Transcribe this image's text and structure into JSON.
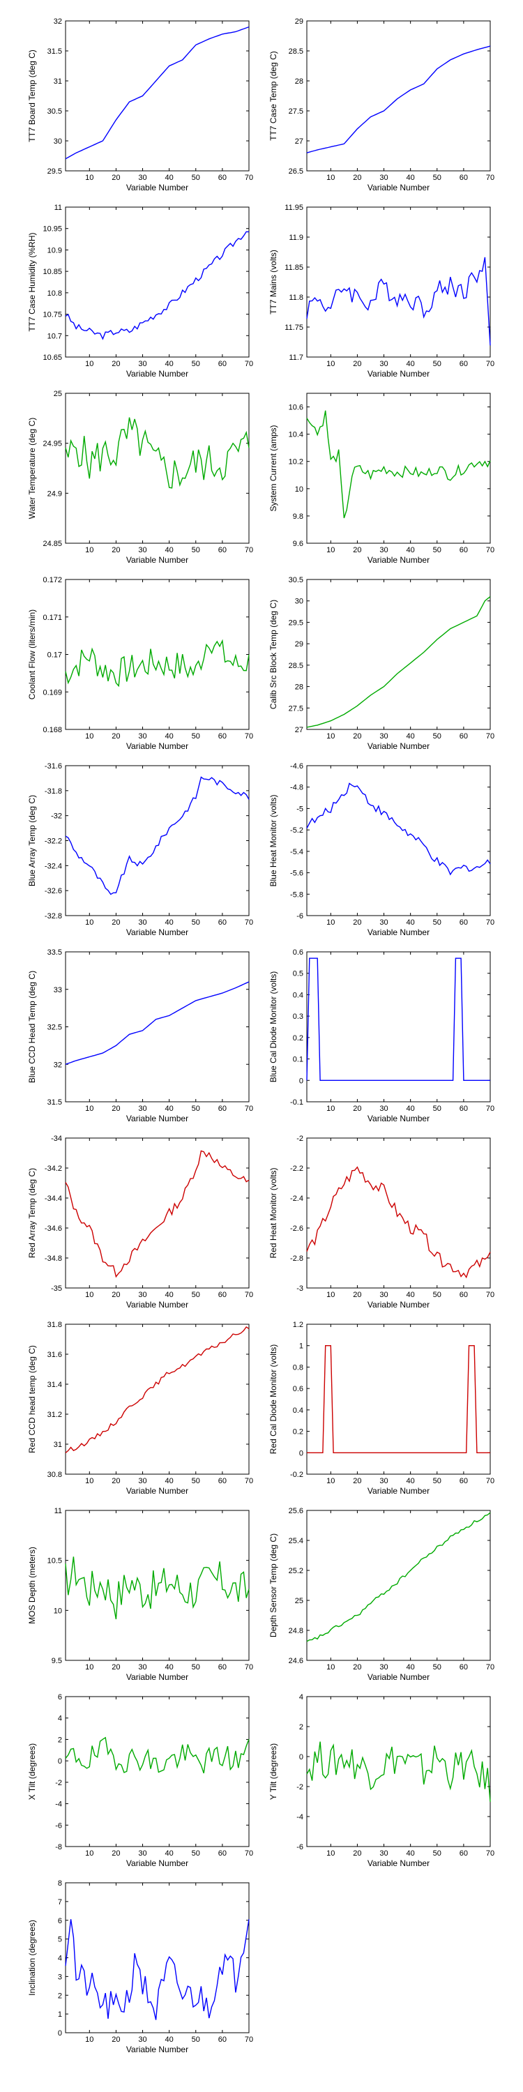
{
  "chart_data": [
    {
      "type": "line",
      "xlabel": "Variable Number",
      "ylabel": "TT7 Board Temp (deg C)",
      "xlim": [
        1,
        70
      ],
      "ylim": [
        29.5,
        32
      ],
      "xticks": [
        10,
        20,
        30,
        40,
        50,
        60,
        70
      ],
      "yticks": [
        "29.5",
        "30",
        "30.5",
        "31",
        "31.5",
        "32"
      ],
      "color": "#0000ff",
      "noise": 0.0,
      "x": [
        1,
        5,
        10,
        15,
        20,
        25,
        30,
        35,
        40,
        45,
        50,
        55,
        60,
        65,
        70
      ],
      "y": [
        29.7,
        29.8,
        29.9,
        30.0,
        30.35,
        30.65,
        30.75,
        31.0,
        31.25,
        31.35,
        31.6,
        31.7,
        31.78,
        31.82,
        31.9
      ]
    },
    {
      "type": "line",
      "xlabel": "Variable Number",
      "ylabel": "TT7 Case Temp (deg C)",
      "xlim": [
        1,
        70
      ],
      "ylim": [
        26.5,
        29
      ],
      "xticks": [
        10,
        20,
        30,
        40,
        50,
        60,
        70
      ],
      "yticks": [
        "26.5",
        "27",
        "27.5",
        "28",
        "28.5",
        "29"
      ],
      "color": "#0000ff",
      "noise": 0.0,
      "x": [
        1,
        5,
        10,
        15,
        20,
        25,
        30,
        35,
        40,
        45,
        50,
        55,
        60,
        65,
        70
      ],
      "y": [
        26.8,
        26.85,
        26.9,
        26.95,
        27.2,
        27.4,
        27.5,
        27.7,
        27.85,
        27.95,
        28.2,
        28.35,
        28.45,
        28.52,
        28.58
      ]
    },
    {
      "type": "line",
      "xlabel": "Variable Number",
      "ylabel": "TT7 Case Humidity (%RH)",
      "xlim": [
        1,
        70
      ],
      "ylim": [
        10.65,
        11
      ],
      "xticks": [
        10,
        20,
        30,
        40,
        50,
        60,
        70
      ],
      "yticks": [
        "10.65",
        "10.7",
        "10.75",
        "10.8",
        "10.85",
        "10.9",
        "10.95",
        "11"
      ],
      "color": "#0000ff",
      "noise": 0.008,
      "x": [
        1,
        5,
        10,
        15,
        20,
        25,
        30,
        35,
        40,
        45,
        50,
        55,
        60,
        65,
        70
      ],
      "y": [
        10.75,
        10.72,
        10.71,
        10.7,
        10.71,
        10.71,
        10.73,
        10.75,
        10.77,
        10.8,
        10.83,
        10.86,
        10.89,
        10.92,
        10.95
      ]
    },
    {
      "type": "line",
      "xlabel": "Variable Number",
      "ylabel": "TT7 Mains  (volts)",
      "xlim": [
        1,
        70
      ],
      "ylim": [
        11.7,
        11.95
      ],
      "xticks": [
        10,
        20,
        30,
        40,
        50,
        60,
        70
      ],
      "yticks": [
        "11.7",
        "11.75",
        "11.8",
        "11.85",
        "11.9",
        "11.95"
      ],
      "color": "#0000ff",
      "noise": 0.018,
      "x": [
        1,
        5,
        10,
        15,
        20,
        25,
        30,
        35,
        40,
        45,
        50,
        55,
        60,
        65,
        68,
        70
      ],
      "y": [
        11.78,
        11.8,
        11.78,
        11.82,
        11.8,
        11.79,
        11.82,
        11.8,
        11.8,
        11.78,
        11.81,
        11.82,
        11.81,
        11.84,
        11.85,
        11.73
      ]
    },
    {
      "type": "line",
      "xlabel": "Variable Number",
      "ylabel": "Water Temperature (deg C)",
      "xlim": [
        1,
        70
      ],
      "ylim": [
        24.85,
        25
      ],
      "xticks": [
        10,
        20,
        30,
        40,
        50,
        60,
        70
      ],
      "yticks": [
        "24.85",
        "24.9",
        "24.95",
        "25"
      ],
      "color": "#00aa00",
      "noise": 0.02,
      "x": [
        1,
        5,
        10,
        15,
        20,
        25,
        30,
        35,
        40,
        45,
        50,
        55,
        60,
        65,
        70
      ],
      "y": [
        24.93,
        24.95,
        24.93,
        24.94,
        24.94,
        24.96,
        24.95,
        24.93,
        24.92,
        24.92,
        24.93,
        24.93,
        24.93,
        24.94,
        24.95
      ]
    },
    {
      "type": "line",
      "xlabel": "Variable Number",
      "ylabel": "System Current (amps)",
      "xlim": [
        1,
        70
      ],
      "ylim": [
        9.6,
        10.7
      ],
      "xticks": [
        10,
        20,
        30,
        40,
        50,
        60,
        70
      ],
      "yticks": [
        "9.6",
        "9.8",
        "10",
        "10.2",
        "10.4",
        "10.6"
      ],
      "color": "#00aa00",
      "noise": 0.04,
      "x": [
        1,
        3,
        5,
        8,
        10,
        13,
        15,
        18,
        20,
        25,
        30,
        35,
        40,
        45,
        50,
        55,
        60,
        65,
        70
      ],
      "y": [
        10.5,
        10.5,
        10.4,
        10.55,
        10.2,
        10.25,
        9.75,
        10.1,
        10.15,
        10.1,
        10.15,
        10.12,
        10.13,
        10.1,
        10.15,
        10.1,
        10.15,
        10.2,
        10.2
      ]
    },
    {
      "type": "line",
      "xlabel": "Variable Number",
      "ylabel": "Coolant Flow (liters/min)",
      "xlim": [
        1,
        70
      ],
      "ylim": [
        0.168,
        0.172
      ],
      "xticks": [
        10,
        20,
        30,
        40,
        50,
        60,
        70
      ],
      "yticks": [
        "0.168",
        "0.169",
        "0.17",
        "0.171",
        "0.172"
      ],
      "color": "#00aa00",
      "noise": 0.0004,
      "x": [
        1,
        5,
        10,
        15,
        20,
        25,
        30,
        35,
        40,
        45,
        50,
        55,
        60,
        65,
        70
      ],
      "y": [
        0.1695,
        0.1697,
        0.17,
        0.1696,
        0.1695,
        0.1696,
        0.1697,
        0.1698,
        0.1697,
        0.1697,
        0.1695,
        0.1705,
        0.17,
        0.1697,
        0.1698
      ]
    },
    {
      "type": "line",
      "xlabel": "Variable Number",
      "ylabel": "Calib Src Block Temp (deg C)",
      "xlim": [
        1,
        70
      ],
      "ylim": [
        27,
        30.5
      ],
      "xticks": [
        10,
        20,
        30,
        40,
        50,
        60,
        70
      ],
      "yticks": [
        "27",
        "27.5",
        "28",
        "28.5",
        "29",
        "29.5",
        "30",
        "30.5"
      ],
      "color": "#00aa00",
      "noise": 0.0,
      "x": [
        1,
        5,
        10,
        15,
        20,
        25,
        30,
        35,
        40,
        45,
        50,
        55,
        60,
        65,
        68,
        70
      ],
      "y": [
        27.05,
        27.1,
        27.2,
        27.35,
        27.55,
        27.8,
        28.0,
        28.3,
        28.55,
        28.8,
        29.1,
        29.35,
        29.5,
        29.65,
        30.0,
        30.1
      ]
    },
    {
      "type": "line",
      "xlabel": "Variable Number",
      "ylabel": "Blue Array Temp (deg C)",
      "xlim": [
        1,
        70
      ],
      "ylim": [
        -32.8,
        -31.6
      ],
      "xticks": [
        10,
        20,
        30,
        40,
        50,
        60,
        70
      ],
      "yticks": [
        "-32.8",
        "-32.6",
        "-32.4",
        "-32.2",
        "-32",
        "-31.8",
        "-31.6"
      ],
      "color": "#0000ff",
      "noise": 0.025,
      "x": [
        1,
        5,
        10,
        15,
        18,
        20,
        25,
        30,
        35,
        40,
        45,
        50,
        52,
        55,
        60,
        65,
        70
      ],
      "y": [
        -32.15,
        -32.3,
        -32.4,
        -32.55,
        -32.65,
        -32.6,
        -32.35,
        -32.4,
        -32.25,
        -32.1,
        -32.0,
        -31.85,
        -31.7,
        -31.7,
        -31.75,
        -31.8,
        -31.85
      ]
    },
    {
      "type": "line",
      "xlabel": "Variable Number",
      "ylabel": "Blue Heat Monitor (volts)",
      "xlim": [
        1,
        70
      ],
      "ylim": [
        -6,
        -4.6
      ],
      "xticks": [
        10,
        20,
        30,
        40,
        50,
        60,
        70
      ],
      "yticks": [
        "-6",
        "-5.8",
        "-5.6",
        "-5.4",
        "-5.2",
        "-5",
        "-4.8",
        "-4.6"
      ],
      "color": "#0000ff",
      "noise": 0.04,
      "x": [
        1,
        5,
        10,
        15,
        18,
        20,
        25,
        30,
        35,
        40,
        45,
        50,
        55,
        60,
        65,
        70
      ],
      "y": [
        -5.15,
        -5.1,
        -5.0,
        -4.85,
        -4.75,
        -4.8,
        -4.95,
        -5.05,
        -5.15,
        -5.25,
        -5.35,
        -5.5,
        -5.6,
        -5.55,
        -5.55,
        -5.5
      ]
    },
    {
      "type": "line",
      "xlabel": "Variable Number",
      "ylabel": "Blue CCD Head Temp (deg C)",
      "xlim": [
        1,
        70
      ],
      "ylim": [
        31.5,
        33.5
      ],
      "xticks": [
        10,
        20,
        30,
        40,
        50,
        60,
        70
      ],
      "yticks": [
        "31.5",
        "32",
        "32.5",
        "33",
        "33.5"
      ],
      "color": "#0000ff",
      "noise": 0.0,
      "x": [
        1,
        5,
        10,
        15,
        20,
        25,
        30,
        35,
        40,
        45,
        50,
        55,
        60,
        65,
        70
      ],
      "y": [
        32.0,
        32.05,
        32.1,
        32.15,
        32.25,
        32.4,
        32.45,
        32.6,
        32.65,
        32.75,
        32.85,
        32.9,
        32.95,
        33.02,
        33.1
      ]
    },
    {
      "type": "line",
      "xlabel": "Variable Number",
      "ylabel": "Blue Cal Diode Monitor (volts)",
      "xlim": [
        1,
        70
      ],
      "ylim": [
        -0.1,
        0.6
      ],
      "xticks": [
        10,
        20,
        30,
        40,
        50,
        60,
        70
      ],
      "yticks": [
        "-0.1",
        "0",
        "0.1",
        "0.2",
        "0.3",
        "0.4",
        "0.5",
        "0.6"
      ],
      "color": "#0000ff",
      "noise": 0.0,
      "x": [
        1,
        2,
        3,
        4,
        5,
        6,
        7,
        56,
        57,
        58,
        59,
        60,
        61,
        70
      ],
      "y": [
        0.0,
        0.57,
        0.57,
        0.57,
        0.57,
        0.0,
        0.0,
        0.0,
        0.57,
        0.57,
        0.57,
        0.0,
        0.0,
        0.0
      ]
    },
    {
      "type": "line",
      "xlabel": "Variable Number",
      "ylabel": "Red Array Temp (deg C)",
      "xlim": [
        1,
        70
      ],
      "ylim": [
        -35,
        -34
      ],
      "xticks": [
        10,
        20,
        30,
        40,
        50,
        60,
        70
      ],
      "yticks": [
        "-35",
        "-34.8",
        "-34.6",
        "-34.4",
        "-34.2",
        "-34"
      ],
      "color": "#cc0000",
      "noise": 0.03,
      "x": [
        1,
        5,
        10,
        15,
        20,
        25,
        30,
        35,
        40,
        45,
        50,
        52,
        55,
        60,
        65,
        70
      ],
      "y": [
        -34.3,
        -34.5,
        -34.6,
        -34.8,
        -34.9,
        -34.8,
        -34.7,
        -34.6,
        -34.5,
        -34.4,
        -34.2,
        -34.1,
        -34.1,
        -34.2,
        -34.25,
        -34.3
      ]
    },
    {
      "type": "line",
      "xlabel": "Variable Number",
      "ylabel": "Red Heat Monitor (volts)",
      "xlim": [
        1,
        70
      ],
      "ylim": [
        -3,
        -2
      ],
      "xticks": [
        10,
        20,
        30,
        40,
        50,
        60,
        70
      ],
      "yticks": [
        "-3",
        "-2.8",
        "-2.6",
        "-2.4",
        "-2.2",
        "-2"
      ],
      "color": "#cc0000",
      "noise": 0.04,
      "x": [
        1,
        5,
        10,
        15,
        20,
        25,
        30,
        35,
        40,
        45,
        50,
        55,
        60,
        65,
        70
      ],
      "y": [
        -2.75,
        -2.65,
        -2.45,
        -2.3,
        -2.2,
        -2.3,
        -2.35,
        -2.5,
        -2.6,
        -2.65,
        -2.8,
        -2.85,
        -2.9,
        -2.85,
        -2.8
      ]
    },
    {
      "type": "line",
      "xlabel": "Variable Number",
      "ylabel": "Red CCD head temp (deg C)",
      "xlim": [
        1,
        70
      ],
      "ylim": [
        30.8,
        31.8
      ],
      "xticks": [
        10,
        20,
        30,
        40,
        50,
        60,
        70
      ],
      "yticks": [
        "30.8",
        "31",
        "31.2",
        "31.4",
        "31.6",
        "31.8"
      ],
      "color": "#cc0000",
      "noise": 0.015,
      "x": [
        1,
        5,
        10,
        15,
        20,
        25,
        30,
        35,
        40,
        45,
        50,
        55,
        60,
        65,
        70
      ],
      "y": [
        30.95,
        30.98,
        31.02,
        31.08,
        31.15,
        31.25,
        31.32,
        31.4,
        31.48,
        31.52,
        31.58,
        31.63,
        31.68,
        31.73,
        31.78
      ]
    },
    {
      "type": "line",
      "xlabel": "Variable Number",
      "ylabel": "Red Cal Diode Monitor (volts)",
      "xlim": [
        1,
        70
      ],
      "ylim": [
        -0.2,
        1.2
      ],
      "xticks": [
        10,
        20,
        30,
        40,
        50,
        60,
        70
      ],
      "yticks": [
        "-0.2",
        "0",
        "0.2",
        "0.4",
        "0.6",
        "0.8",
        "1",
        "1.2"
      ],
      "color": "#cc0000",
      "noise": 0.0,
      "x": [
        1,
        7,
        8,
        9,
        10,
        11,
        12,
        61,
        62,
        63,
        64,
        65,
        66,
        70
      ],
      "y": [
        0.0,
        0.0,
        1.0,
        1.0,
        1.0,
        0.0,
        0.0,
        0.0,
        1.0,
        1.0,
        1.0,
        0.0,
        0.0,
        0.0
      ]
    },
    {
      "type": "line",
      "xlabel": "Variable Number",
      "ylabel": "MOS Depth  (meters)",
      "xlim": [
        1,
        70
      ],
      "ylim": [
        9.5,
        11
      ],
      "xticks": [
        10,
        20,
        30,
        40,
        50,
        60,
        70
      ],
      "yticks": [
        "9.5",
        "10",
        "10.5",
        "11"
      ],
      "color": "#00aa00",
      "noise": 0.2,
      "x": [
        1,
        5,
        10,
        15,
        20,
        25,
        30,
        35,
        40,
        45,
        50,
        55,
        60,
        65,
        70
      ],
      "y": [
        10.3,
        10.4,
        10.2,
        10.3,
        10.1,
        10.3,
        10.2,
        10.2,
        10.3,
        10.2,
        10.2,
        10.3,
        10.3,
        10.2,
        10.2
      ]
    },
    {
      "type": "line",
      "xlabel": "Variable Number",
      "ylabel": "Depth Sensor Temp (deg C)",
      "xlim": [
        1,
        70
      ],
      "ylim": [
        24.6,
        25.6
      ],
      "xticks": [
        10,
        20,
        30,
        40,
        50,
        60,
        70
      ],
      "yticks": [
        "24.6",
        "24.8",
        "25",
        "25.2",
        "25.4",
        "25.6"
      ],
      "color": "#00aa00",
      "noise": 0.012,
      "x": [
        1,
        5,
        10,
        15,
        20,
        25,
        30,
        35,
        40,
        45,
        50,
        55,
        60,
        65,
        70
      ],
      "y": [
        24.72,
        24.75,
        24.8,
        24.85,
        24.9,
        24.98,
        25.05,
        25.12,
        25.2,
        25.28,
        25.35,
        25.42,
        25.48,
        25.53,
        25.58
      ]
    },
    {
      "type": "line",
      "xlabel": "Variable Number",
      "ylabel": "X Tilt  (degrees)",
      "xlim": [
        1,
        70
      ],
      "ylim": [
        -8,
        6
      ],
      "xticks": [
        10,
        20,
        30,
        40,
        50,
        60,
        70
      ],
      "yticks": [
        "-8",
        "-6",
        "-4",
        "-2",
        "0",
        "2",
        "4",
        "6"
      ],
      "color": "#00aa00",
      "noise": 1.3,
      "x": [
        1,
        5,
        10,
        15,
        20,
        25,
        30,
        35,
        40,
        45,
        50,
        55,
        60,
        65,
        70
      ],
      "y": [
        0,
        0.5,
        0,
        1.0,
        0.5,
        0,
        0.5,
        -0.5,
        0,
        0.5,
        0,
        0,
        0.5,
        0,
        1.0
      ]
    },
    {
      "type": "line",
      "xlabel": "Variable Number",
      "ylabel": "Y Tilt  (degrees)",
      "xlim": [
        1,
        70
      ],
      "ylim": [
        -6,
        4
      ],
      "xticks": [
        10,
        20,
        30,
        40,
        50,
        60,
        70
      ],
      "yticks": [
        "-6",
        "-4",
        "-2",
        "0",
        "2",
        "4"
      ],
      "color": "#00aa00",
      "noise": 1.2,
      "x": [
        1,
        5,
        10,
        15,
        20,
        25,
        30,
        35,
        40,
        45,
        50,
        55,
        60,
        65,
        70
      ],
      "y": [
        -1,
        0,
        -0.5,
        0,
        -0.5,
        -1,
        -0.5,
        0,
        -0.5,
        -1,
        0,
        -1,
        -0.5,
        -1,
        -2
      ]
    },
    {
      "type": "line",
      "xlabel": "Variable Number",
      "ylabel": "Inclination  (degrees)",
      "xlim": [
        1,
        70
      ],
      "ylim": [
        0,
        8
      ],
      "xticks": [
        10,
        20,
        30,
        40,
        50,
        60,
        70
      ],
      "yticks": [
        "0",
        "1",
        "2",
        "3",
        "4",
        "5",
        "6",
        "7",
        "8"
      ],
      "color": "#0000ff",
      "noise": 0.9,
      "x": [
        1,
        3,
        5,
        10,
        15,
        20,
        25,
        28,
        30,
        35,
        40,
        45,
        50,
        55,
        60,
        65,
        70
      ],
      "y": [
        4,
        6.5,
        3,
        2.5,
        1.5,
        1.2,
        2,
        4.5,
        2.5,
        1.2,
        3.5,
        2,
        2,
        1.5,
        4,
        3,
        6.5
      ]
    }
  ]
}
